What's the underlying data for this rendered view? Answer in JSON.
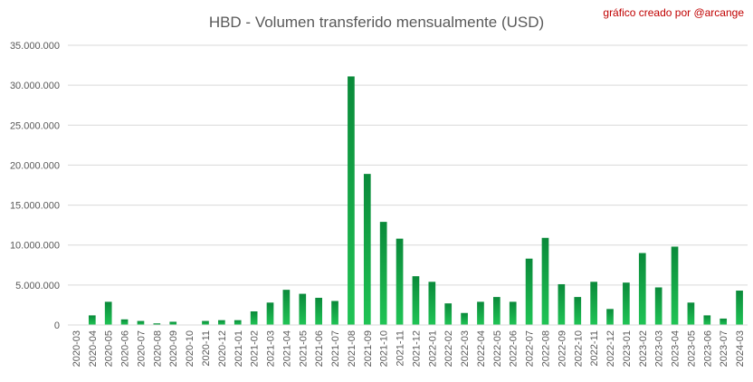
{
  "chart_data": {
    "type": "bar",
    "title": "HBD - Volumen transferido mensualmente (USD)",
    "credit": "gráfico creado por @arcange",
    "xlabel": "",
    "ylabel": "",
    "ylim": [
      0,
      35000000
    ],
    "yticks": [
      0,
      5000000,
      10000000,
      15000000,
      20000000,
      25000000,
      30000000,
      35000000
    ],
    "ytick_labels": [
      "0",
      "5.000.000",
      "10.000.000",
      "15.000.000",
      "20.000.000",
      "25.000.000",
      "30.000.000",
      "35.000.000"
    ],
    "grid": true,
    "legend": "none",
    "categories": [
      "2020-03",
      "2020-04",
      "2020-05",
      "2020-06",
      "2020-07",
      "2020-08",
      "2020-09",
      "2020-10",
      "2020-11",
      "2020-12",
      "2021-01",
      "2021-02",
      "2021-03",
      "2021-04",
      "2021-05",
      "2021-06",
      "2021-07",
      "2021-08",
      "2021-09",
      "2021-10",
      "2021-11",
      "2021-12",
      "2022-01",
      "2022-02",
      "2022-03",
      "2022-04",
      "2022-05",
      "2022-06",
      "2022-07",
      "2022-08",
      "2022-09",
      "2022-10",
      "2022-11",
      "2022-12",
      "2023-01",
      "2023-02",
      "2023-03",
      "2023-04",
      "2023-05",
      "2023-06",
      "2023-07",
      "2024-03"
    ],
    "values": [
      50000,
      1200000,
      2900000,
      700000,
      500000,
      200000,
      400000,
      50000,
      500000,
      600000,
      600000,
      1700000,
      2800000,
      4400000,
      3900000,
      3400000,
      3000000,
      31100000,
      18900000,
      12900000,
      10800000,
      6100000,
      5400000,
      2700000,
      1500000,
      2900000,
      3500000,
      2900000,
      8300000,
      10900000,
      5100000,
      3500000,
      5400000,
      2000000,
      5300000,
      9000000,
      4700000,
      9800000,
      2800000,
      1200000,
      800000,
      4300000
    ],
    "colors": {
      "bar_dark": "#0a8a3a",
      "bar_light": "#20c455",
      "grid": "#d9d9d9",
      "title": "#595959",
      "credit": "#c00000",
      "tick": "#595959"
    }
  }
}
